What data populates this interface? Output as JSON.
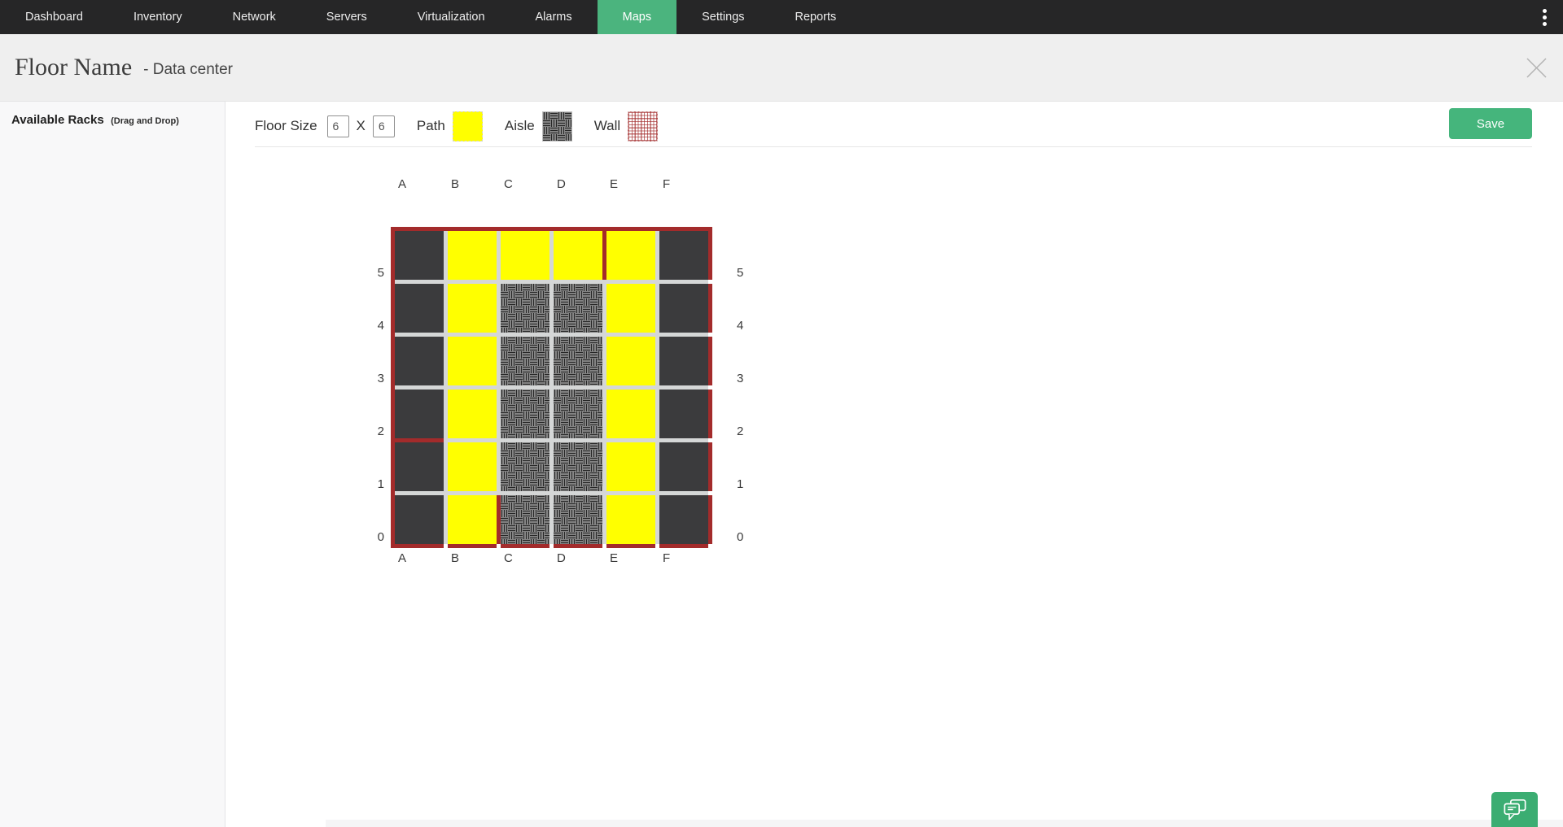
{
  "nav": {
    "items": [
      {
        "label": "Dashboard",
        "active": false
      },
      {
        "label": "Inventory",
        "active": false
      },
      {
        "label": "Network",
        "active": false
      },
      {
        "label": "Servers",
        "active": false
      },
      {
        "label": "Virtualization",
        "active": false
      },
      {
        "label": "Alarms",
        "active": false
      },
      {
        "label": "Maps",
        "active": true
      },
      {
        "label": "Settings",
        "active": false
      },
      {
        "label": "Reports",
        "active": false
      }
    ]
  },
  "header": {
    "title": "Floor Name",
    "subtitle": "- Data center"
  },
  "sidebar": {
    "title": "Available Racks",
    "hint": "(Drag and Drop)"
  },
  "toolbar": {
    "floor_size_label": "Floor Size",
    "size_x": "6",
    "separator": "X",
    "size_y": "6",
    "legend": [
      {
        "label": "Path",
        "type": "path"
      },
      {
        "label": "Aisle",
        "type": "aisle"
      },
      {
        "label": "Wall",
        "type": "wall"
      }
    ],
    "save_label": "Save"
  },
  "grid": {
    "columns": [
      "A",
      "B",
      "C",
      "D",
      "E",
      "F"
    ],
    "rows": [
      "5",
      "4",
      "3",
      "2",
      "1",
      "0"
    ],
    "cells": [
      [
        "empty",
        "path",
        "path",
        "path",
        "path",
        "empty"
      ],
      [
        "empty",
        "path",
        "aisle",
        "aisle",
        "path",
        "empty"
      ],
      [
        "empty",
        "path",
        "aisle",
        "aisle",
        "path",
        "empty"
      ],
      [
        "empty",
        "path",
        "aisle",
        "aisle",
        "path",
        "empty"
      ],
      [
        "empty",
        "path",
        "aisle",
        "aisle",
        "path",
        "empty"
      ],
      [
        "empty",
        "path",
        "aisle",
        "aisle",
        "path",
        "empty"
      ]
    ],
    "walls": {
      "perimeter": true,
      "inner_segments": [
        {
          "cell": "E5",
          "side": "left"
        },
        {
          "cell": "C0",
          "side": "left"
        },
        {
          "cell": "A2",
          "side": "bottom"
        }
      ]
    }
  },
  "colors": {
    "nav_bg": "#262627",
    "accent_green": "#45b57c",
    "path_yellow": "#ffff00",
    "tile_dark": "#3b3b3d",
    "wall_red": "#a32b2b"
  }
}
